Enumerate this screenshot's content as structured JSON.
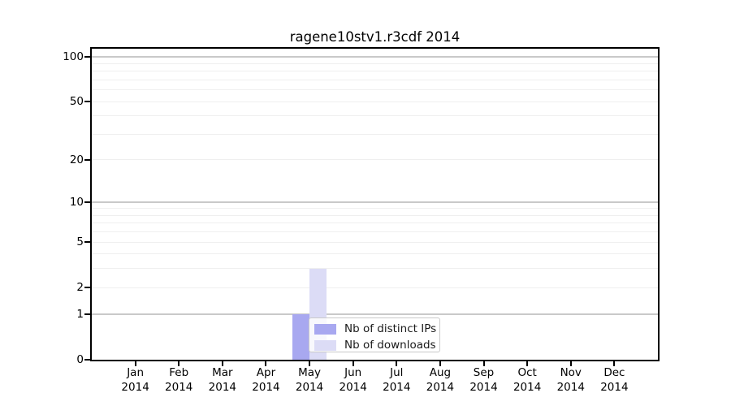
{
  "chart_data": {
    "type": "bar",
    "title": "ragene10stv1.r3cdf 2014",
    "categories": [
      "Jan",
      "Feb",
      "Mar",
      "Apr",
      "May",
      "Jun",
      "Jul",
      "Aug",
      "Sep",
      "Oct",
      "Nov",
      "Dec"
    ],
    "x_tick_year": "2014",
    "series": [
      {
        "name": "Nb of distinct IPs",
        "color": "#a8a8f0",
        "values": [
          0,
          0,
          0,
          0,
          1,
          0,
          0,
          0,
          0,
          0,
          0,
          0
        ]
      },
      {
        "name": "Nb of downloads",
        "color": "#dcdcf6",
        "values": [
          0,
          0,
          0,
          0,
          3,
          0,
          0,
          0,
          0,
          0,
          0,
          0
        ]
      }
    ],
    "xlabel": "",
    "ylabel": "",
    "y_axis": {
      "scale": "log10(value+1)",
      "tick_values": [
        0,
        1,
        2,
        5,
        10,
        20,
        50,
        100
      ],
      "major_gridlines": [
        1,
        10,
        100
      ],
      "minor_gridlines": [
        2,
        3,
        4,
        5,
        6,
        7,
        8,
        9,
        20,
        30,
        40,
        50,
        60,
        70,
        80,
        90
      ],
      "range": [
        0,
        113
      ]
    },
    "legend": {
      "position": "lower center",
      "entries": [
        "Nb of distinct IPs",
        "Nb of downloads"
      ]
    },
    "grid": true
  },
  "colors": {
    "distinct_ips_bar": "#a8a8f0",
    "downloads_bar": "#dcdcf6",
    "major_grid": "#c9c9c9",
    "minor_grid": "#efefef",
    "axis": "#000000",
    "background": "#ffffff"
  }
}
